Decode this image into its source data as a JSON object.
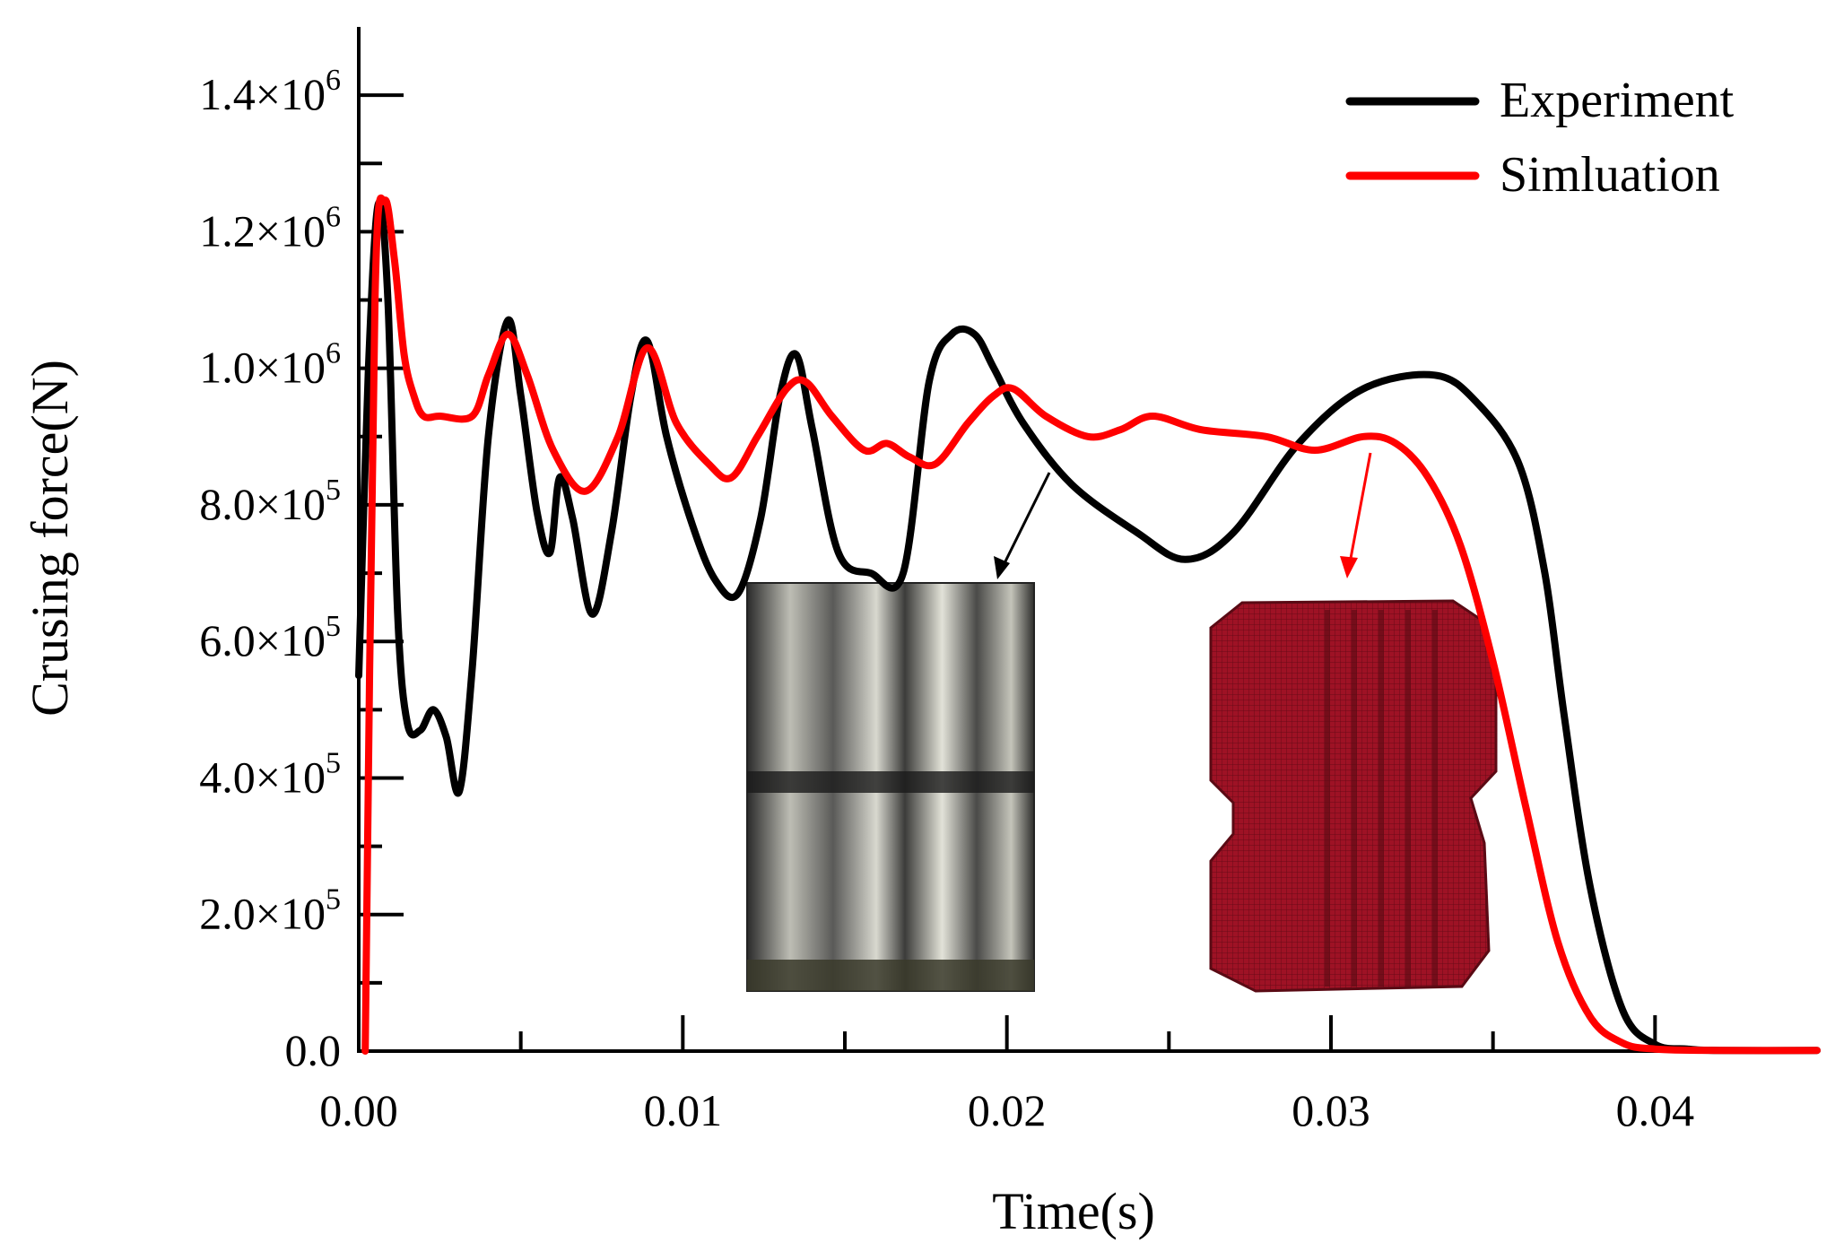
{
  "chart_data": {
    "type": "line",
    "title": "",
    "xlabel": "Time(s)",
    "ylabel": "Crusing force(N)",
    "xlim": [
      0,
      0.045
    ],
    "ylim": [
      0,
      1500000
    ],
    "grid": false,
    "legend_position": "top-right",
    "x_ticks": [
      {
        "value": 0.0,
        "label": "0.00"
      },
      {
        "value": 0.01,
        "label": "0.01"
      },
      {
        "value": 0.02,
        "label": "0.02"
      },
      {
        "value": 0.03,
        "label": "0.03"
      },
      {
        "value": 0.04,
        "label": "0.04"
      }
    ],
    "y_ticks": [
      {
        "value": 0,
        "mantissa": "0.0",
        "exponent": ""
      },
      {
        "value": 200000,
        "mantissa": "2.0×10",
        "exponent": "5"
      },
      {
        "value": 400000,
        "mantissa": "4.0×10",
        "exponent": "5"
      },
      {
        "value": 600000,
        "mantissa": "6.0×10",
        "exponent": "5"
      },
      {
        "value": 800000,
        "mantissa": "8.0×10",
        "exponent": "5"
      },
      {
        "value": 1000000,
        "mantissa": "1.0×10",
        "exponent": "6"
      },
      {
        "value": 1200000,
        "mantissa": "1.2×10",
        "exponent": "6"
      },
      {
        "value": 1400000,
        "mantissa": "1.4×10",
        "exponent": "6"
      }
    ],
    "series": [
      {
        "name": "Experiment",
        "color": "#000000",
        "x": [
          0.0,
          0.0003,
          0.0006,
          0.0009,
          0.0012,
          0.0015,
          0.0019,
          0.0023,
          0.0027,
          0.0031,
          0.0035,
          0.004,
          0.0046,
          0.005,
          0.0055,
          0.0059,
          0.0062,
          0.0066,
          0.0072,
          0.0078,
          0.0084,
          0.0089,
          0.0095,
          0.0103,
          0.011,
          0.0117,
          0.0124,
          0.013,
          0.0135,
          0.014,
          0.0148,
          0.0158,
          0.0168,
          0.0176,
          0.0183,
          0.019,
          0.0196,
          0.0205,
          0.022,
          0.024,
          0.0255,
          0.027,
          0.029,
          0.031,
          0.0332,
          0.0345,
          0.0358,
          0.0366,
          0.0372,
          0.038,
          0.039,
          0.04,
          0.041,
          0.042,
          0.045
        ],
        "values": [
          550000,
          1000000,
          1240000,
          1100000,
          640000,
          480000,
          470000,
          500000,
          460000,
          380000,
          560000,
          900000,
          1070000,
          960000,
          790000,
          730000,
          840000,
          780000,
          640000,
          760000,
          960000,
          1040000,
          900000,
          770000,
          690000,
          670000,
          780000,
          960000,
          1020000,
          910000,
          730000,
          700000,
          700000,
          980000,
          1050000,
          1050000,
          1000000,
          920000,
          830000,
          760000,
          720000,
          760000,
          890000,
          970000,
          990000,
          950000,
          860000,
          700000,
          490000,
          240000,
          60000,
          10000,
          3000,
          1000,
          1000
        ]
      },
      {
        "name": "Simluation",
        "color": "#ff0000",
        "x": [
          0.0002,
          0.0005,
          0.0008,
          0.0011,
          0.0014,
          0.0017,
          0.002,
          0.0025,
          0.0035,
          0.004,
          0.0046,
          0.0052,
          0.006,
          0.007,
          0.008,
          0.0089,
          0.0098,
          0.0108,
          0.0115,
          0.0123,
          0.0132,
          0.0138,
          0.0146,
          0.0156,
          0.0163,
          0.017,
          0.0178,
          0.0188,
          0.0196,
          0.0202,
          0.0212,
          0.0225,
          0.0235,
          0.0245,
          0.026,
          0.028,
          0.0295,
          0.031,
          0.032,
          0.033,
          0.034,
          0.035,
          0.036,
          0.037,
          0.038,
          0.039,
          0.04,
          0.042,
          0.045
        ],
        "values": [
          0,
          1100000,
          1245000,
          1160000,
          1020000,
          960000,
          930000,
          930000,
          930000,
          990000,
          1050000,
          990000,
          880000,
          820000,
          900000,
          1030000,
          920000,
          860000,
          840000,
          900000,
          970000,
          980000,
          930000,
          880000,
          890000,
          870000,
          860000,
          920000,
          960000,
          970000,
          930000,
          900000,
          910000,
          930000,
          910000,
          900000,
          880000,
          900000,
          890000,
          840000,
          740000,
          570000,
          360000,
          160000,
          50000,
          12000,
          3000,
          1000,
          1000
        ]
      }
    ],
    "legend": {
      "entries": [
        "Experiment",
        "Simluation"
      ]
    }
  }
}
